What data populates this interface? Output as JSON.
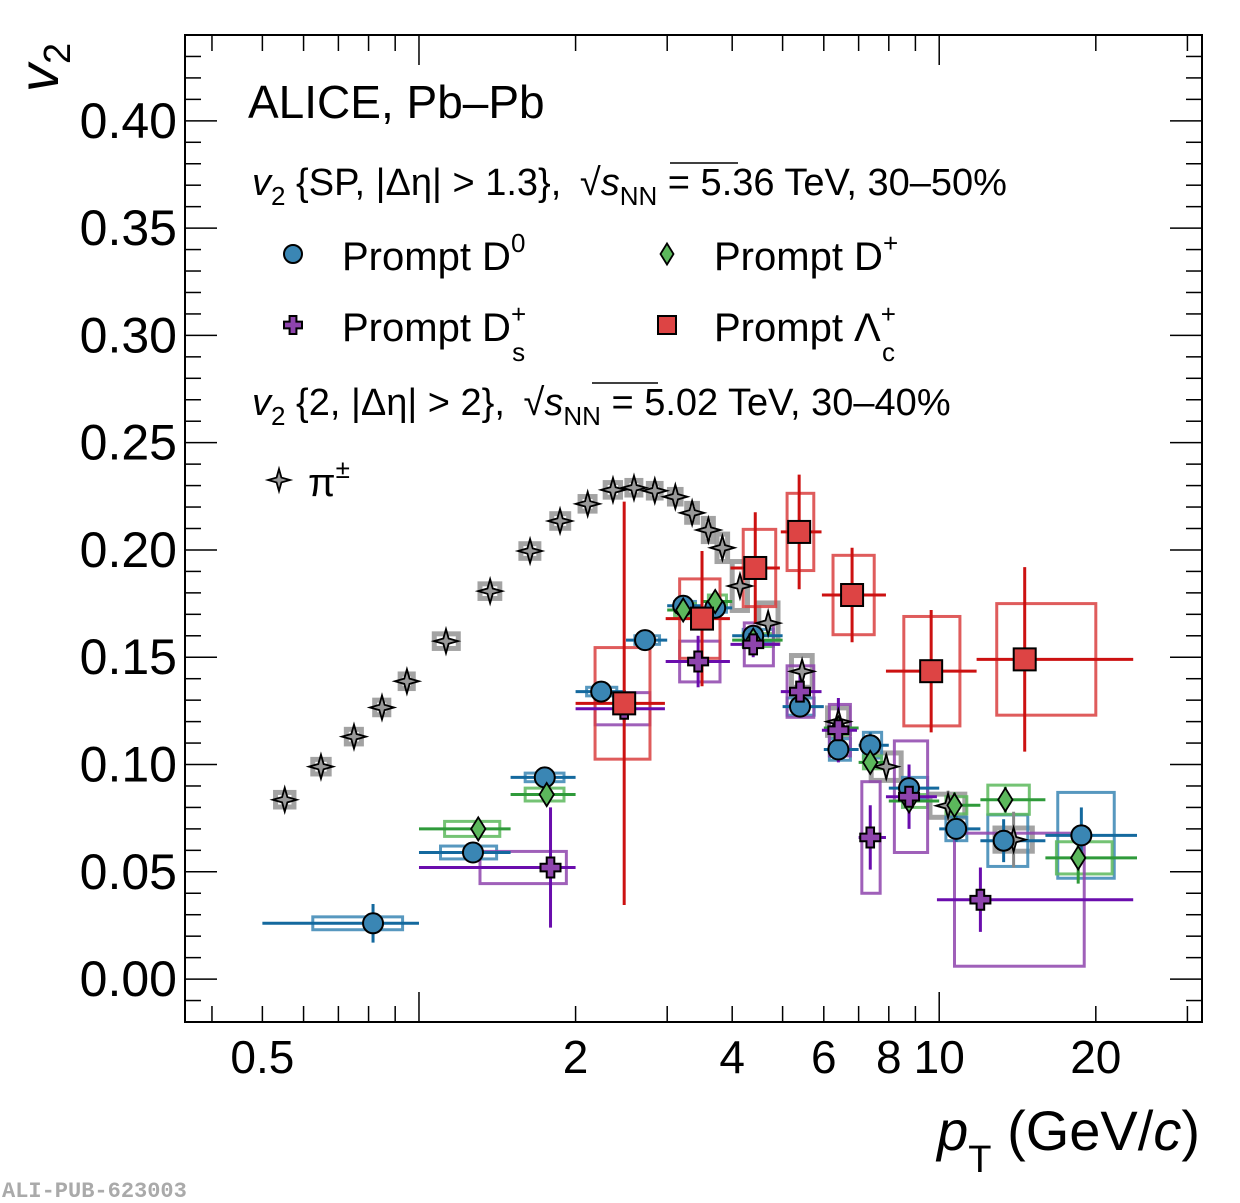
{
  "chart_data": {
    "type": "scatter",
    "title": "ALICE, Pb–Pb",
    "xlabel": "p_T (GeV/c)",
    "ylabel": "v_2",
    "x_scale": "log",
    "xlim": [
      0.355,
      32
    ],
    "ylim": [
      -0.02,
      0.44
    ],
    "x_ticks": [
      0.5,
      2,
      4,
      6,
      8,
      10,
      20
    ],
    "x_tick_labels": [
      "0.5",
      "2",
      "4",
      "6",
      "8",
      "10",
      "20"
    ],
    "y_ticks": [
      0.0,
      0.05,
      0.1,
      0.15,
      0.2,
      0.25,
      0.3,
      0.35,
      0.4
    ],
    "y_tick_labels": [
      "0.00",
      "0.05",
      "0.10",
      "0.15",
      "0.20",
      "0.25",
      "0.30",
      "0.35",
      "0.40"
    ],
    "grid": false,
    "legend_position": "top-left",
    "annotations": {
      "experiment": "ALICE, Pb–Pb",
      "header1": {
        "v": "v",
        "sub": "2",
        "method": "{SP, |Δη| > 1.3},",
        "sqrt": "s",
        "sqrt_sub": "NN",
        "rest": "= 5.36 TeV, 30–50%"
      },
      "header2": {
        "v": "v",
        "sub": "2",
        "method": "{2, |Δη| > 2},",
        "sqrt": "s",
        "sqrt_sub": "NN",
        "rest": "= 5.02 TeV, 30–40%"
      },
      "pub_id": "ALI-PUB-623003"
    },
    "series": [
      {
        "name": "Prompt D0",
        "legend_main": "Prompt D",
        "legend_sup": "0",
        "legend_sub": "",
        "marker": "circle",
        "fill": "#3a86b4",
        "line": "#14699e",
        "box": "#3a86b4",
        "points": [
          {
            "x": 0.816,
            "y": 0.026,
            "xlo": 0.5,
            "xhi": 1.0,
            "ey": 0.009,
            "bx": [
              0.625,
              0.93
            ],
            "bey": 0.003
          },
          {
            "x": 1.27,
            "y": 0.059,
            "xlo": 1.0,
            "xhi": 1.5,
            "ey": 0.003,
            "bx": [
              1.1,
              1.41
            ],
            "bey": 0.003
          },
          {
            "x": 1.745,
            "y": 0.094,
            "xlo": 1.5,
            "xhi": 2.0,
            "ey": 0.003,
            "bx": [
              1.6,
              1.9
            ],
            "bey": 0.002
          },
          {
            "x": 2.24,
            "y": 0.134,
            "xlo": 2.0,
            "xhi": 2.5,
            "ey": 0.003,
            "bx": [
              2.1,
              2.4
            ],
            "bey": 0.002
          },
          {
            "x": 2.72,
            "y": 0.158,
            "xlo": 2.5,
            "xhi": 3.0,
            "ey": 0.003,
            "bx": [
              2.6,
              2.9
            ],
            "bey": 0.002
          },
          {
            "x": 3.22,
            "y": 0.174,
            "xlo": 3.0,
            "xhi": 3.5,
            "ey": 0.003,
            "bx": [
              3.1,
              3.4
            ],
            "bey": 0.002
          },
          {
            "x": 3.71,
            "y": 0.173,
            "xlo": 3.5,
            "xhi": 4.0,
            "ey": 0.003,
            "bx": [
              3.6,
              3.9
            ],
            "bey": 0.002
          },
          {
            "x": 4.39,
            "y": 0.16,
            "xlo": 4.0,
            "xhi": 5.0,
            "ey": 0.004,
            "bx": [
              4.2,
              4.8
            ],
            "bey": 0.003
          },
          {
            "x": 5.4,
            "y": 0.127,
            "xlo": 5.0,
            "xhi": 6.0,
            "ey": 0.005,
            "bx": [
              5.1,
              5.75
            ],
            "bey": 0.004
          },
          {
            "x": 6.4,
            "y": 0.107,
            "xlo": 6.0,
            "xhi": 7.0,
            "ey": 0.005,
            "bx": [
              6.15,
              6.75
            ],
            "bey": 0.005
          },
          {
            "x": 7.37,
            "y": 0.109,
            "xlo": 7.0,
            "xhi": 8.0,
            "ey": 0.006,
            "bx": [
              7.15,
              7.75
            ],
            "bey": 0.006
          },
          {
            "x": 8.75,
            "y": 0.089,
            "xlo": 8.0,
            "xhi": 10.0,
            "ey": 0.008,
            "bx": [
              8.5,
              9.5
            ],
            "bey": 0.005
          },
          {
            "x": 10.78,
            "y": 0.07,
            "xlo": 10.0,
            "xhi": 12.0,
            "ey": 0.006,
            "bx": [
              10.3,
              11.3
            ],
            "bey": 0.0055
          },
          {
            "x": 13.3,
            "y": 0.0645,
            "xlo": 12.0,
            "xhi": 16.0,
            "ey": 0.01,
            "bx": [
              12.4,
              14.8
            ],
            "bey": 0.012
          },
          {
            "x": 18.76,
            "y": 0.067,
            "xlo": 16.0,
            "xhi": 24.0,
            "ey": 0.013,
            "bx": [
              16.9,
              21.7
            ],
            "bey": 0.02
          }
        ]
      },
      {
        "name": "Prompt D+",
        "legend_main": "Prompt D",
        "legend_sup": "+",
        "legend_sub": "",
        "marker": "diamond",
        "fill": "#5cb85c",
        "line": "#2f9a3a",
        "box": "#5cb85c",
        "points": [
          {
            "x": 1.3,
            "y": 0.07,
            "xlo": 1.0,
            "xhi": 1.5,
            "ey": 0.004,
            "bx": [
              1.12,
              1.43
            ],
            "bey": 0.0035
          },
          {
            "x": 1.76,
            "y": 0.086,
            "xlo": 1.5,
            "xhi": 2.0,
            "ey": 0.004,
            "bx": [
              1.6,
              1.9
            ],
            "bey": 0.003
          },
          {
            "x": 3.22,
            "y": 0.172,
            "xlo": 3.0,
            "xhi": 3.5,
            "ey": 0.004,
            "bx": [
              3.1,
              3.4
            ],
            "bey": 0.003
          },
          {
            "x": 3.71,
            "y": 0.176,
            "xlo": 3.5,
            "xhi": 4.0,
            "ey": 0.004,
            "bx": [
              3.6,
              3.9
            ],
            "bey": 0.003
          },
          {
            "x": 4.39,
            "y": 0.158,
            "xlo": 4.0,
            "xhi": 5.0,
            "ey": 0.004,
            "bx": [
              4.2,
              4.8
            ],
            "bey": 0.003
          },
          {
            "x": 6.4,
            "y": 0.117,
            "xlo": 6.0,
            "xhi": 7.0,
            "ey": 0.005,
            "bx": [
              6.15,
              6.75
            ],
            "bey": 0.003
          },
          {
            "x": 7.37,
            "y": 0.101,
            "xlo": 7.0,
            "xhi": 8.0,
            "ey": 0.005,
            "bx": [
              7.15,
              7.75
            ],
            "bey": 0.003
          },
          {
            "x": 8.75,
            "y": 0.083,
            "xlo": 8.0,
            "xhi": 10.0,
            "ey": 0.006,
            "bx": [
              8.5,
              9.5
            ],
            "bey": 0.003
          },
          {
            "x": 10.7,
            "y": 0.081,
            "xlo": 10.0,
            "xhi": 12.0,
            "ey": 0.006,
            "bx": [
              10.3,
              11.3
            ],
            "bey": 0.004
          },
          {
            "x": 13.4,
            "y": 0.0836,
            "xlo": 12.0,
            "xhi": 16.0,
            "ey": 0.006,
            "bx": [
              12.4,
              14.9
            ],
            "bey": 0.0068
          },
          {
            "x": 18.5,
            "y": 0.0565,
            "xlo": 16.0,
            "xhi": 24.0,
            "ey": 0.012,
            "bx": [
              16.8,
              21.5
            ],
            "bey": 0.0075
          }
        ]
      },
      {
        "name": "Prompt Ds+",
        "legend_main": "Prompt D",
        "legend_sup": "+",
        "legend_sub": "s",
        "marker": "cross",
        "fill": "#8e44ad",
        "line": "#6a0dad",
        "box": "#8e44ad",
        "points": [
          {
            "x": 1.79,
            "y": 0.052,
            "xlo": 1.0,
            "xhi": 2.0,
            "ey": 0.028,
            "bx": [
              1.31,
              1.92
            ],
            "bey": 0.0075
          },
          {
            "x": 2.48,
            "y": 0.126,
            "xlo": 2.0,
            "xhi": 2.97,
            "ey": 0.006,
            "bx": [
              2.18,
              2.78
            ],
            "bey": 0.0075
          },
          {
            "x": 3.44,
            "y": 0.148,
            "xlo": 2.98,
            "xhi": 3.96,
            "ey": 0.012,
            "bx": [
              3.17,
              3.79
            ],
            "bey": 0.0095
          },
          {
            "x": 4.39,
            "y": 0.156,
            "xlo": 3.97,
            "xhi": 4.94,
            "ey": 0.006,
            "bx": [
              4.22,
              4.8
            ],
            "bey": 0.01
          },
          {
            "x": 5.4,
            "y": 0.134,
            "xlo": 4.96,
            "xhi": 5.94,
            "ey": 0.01,
            "bx": [
              5.1,
              5.74
            ],
            "bey": 0.012
          },
          {
            "x": 6.4,
            "y": 0.116,
            "xlo": 5.95,
            "xhi": 6.95,
            "ey": 0.015,
            "bx": [
              6.15,
              6.75
            ],
            "bey": 0.012
          },
          {
            "x": 7.37,
            "y": 0.066,
            "xlo": 7.0,
            "xhi": 7.9,
            "ey": 0.015,
            "bx": [
              7.1,
              7.7
            ],
            "bey": 0.026
          },
          {
            "x": 8.75,
            "y": 0.085,
            "xlo": 7.9,
            "xhi": 9.9,
            "ey": 0.015,
            "bx": [
              8.2,
              9.5
            ],
            "bey": 0.026
          },
          {
            "x": 12.0,
            "y": 0.037,
            "xlo": 9.9,
            "xhi": 23.6,
            "ey": 0.015,
            "bx": [
              10.7,
              19.0
            ],
            "bey": 0.031
          }
        ]
      },
      {
        "name": "Prompt Lambda_c+",
        "legend_main": "Prompt Λ",
        "legend_sup": "+",
        "legend_sub": "c",
        "marker": "square",
        "fill": "#dd4444",
        "line": "#cc1111",
        "box": "#d94040",
        "points": [
          {
            "x": 2.48,
            "y": 0.1285,
            "xlo": 2.0,
            "xhi": 2.97,
            "ey": 0.094,
            "bx": [
              2.18,
              2.78
            ],
            "bey": 0.026
          },
          {
            "x": 3.5,
            "y": 0.168,
            "xlo": 2.98,
            "xhi": 3.96,
            "ey": 0.0315,
            "bx": [
              3.17,
              3.79
            ],
            "bey": 0.0185
          },
          {
            "x": 4.43,
            "y": 0.1916,
            "xlo": 3.97,
            "xhi": 4.94,
            "ey": 0.026,
            "bx": [
              4.2,
              4.85
            ],
            "bey": 0.018
          },
          {
            "x": 5.38,
            "y": 0.2084,
            "xlo": 4.96,
            "xhi": 5.94,
            "ey": 0.0267,
            "bx": [
              5.1,
              5.74
            ],
            "bey": 0.018
          },
          {
            "x": 6.8,
            "y": 0.179,
            "xlo": 5.95,
            "xhi": 7.9,
            "ey": 0.022,
            "bx": [
              6.25,
              7.5
            ],
            "bey": 0.0185
          },
          {
            "x": 9.65,
            "y": 0.1435,
            "xlo": 7.9,
            "xhi": 11.8,
            "ey": 0.0285,
            "bx": [
              8.55,
              10.96
            ],
            "bey": 0.0255
          },
          {
            "x": 14.6,
            "y": 0.149,
            "xlo": 11.8,
            "xhi": 23.6,
            "ey": 0.043,
            "bx": [
              12.9,
              20.0
            ],
            "bey": 0.026
          }
        ]
      },
      {
        "name": "pi+-",
        "legend_main": "π",
        "legend_sup": "±",
        "legend_sub": "",
        "marker": "star4",
        "fill": "#999999",
        "line": "#777777",
        "box": "#999999",
        "points": [
          {
            "x": 0.552,
            "y": 0.0836,
            "ey": 0.001,
            "bx": [
              0.53,
              0.575
            ],
            "bey": 0.002
          },
          {
            "x": 0.648,
            "y": 0.099,
            "ey": 0.001,
            "bx": [
              0.625,
              0.672
            ],
            "bey": 0.002
          },
          {
            "x": 0.75,
            "y": 0.113,
            "ey": 0.001,
            "bx": [
              0.725,
              0.775
            ],
            "bey": 0.002
          },
          {
            "x": 0.849,
            "y": 0.1266,
            "ey": 0.001,
            "bx": [
              0.822,
              0.875
            ],
            "bey": 0.002
          },
          {
            "x": 0.948,
            "y": 0.1388,
            "ey": 0.001,
            "bx": [
              0.92,
              0.975
            ],
            "bey": 0.002
          },
          {
            "x": 1.127,
            "y": 0.1575,
            "ey": 0.001,
            "bx": [
              1.07,
              1.19
            ],
            "bey": 0.002
          },
          {
            "x": 1.37,
            "y": 0.1808,
            "ey": 0.001,
            "bx": [
              1.31,
              1.43
            ],
            "bey": 0.002
          },
          {
            "x": 1.635,
            "y": 0.1995,
            "ey": 0.001,
            "bx": [
              1.57,
              1.7
            ],
            "bey": 0.002
          },
          {
            "x": 1.867,
            "y": 0.2135,
            "ey": 0.001,
            "bx": [
              1.8,
              1.94
            ],
            "bey": 0.002
          },
          {
            "x": 2.11,
            "y": 0.2215,
            "ey": 0.001,
            "bx": [
              2.04,
              2.18
            ],
            "bey": 0.002
          },
          {
            "x": 2.36,
            "y": 0.228,
            "ey": 0.001,
            "bx": [
              2.28,
              2.44
            ],
            "bey": 0.002
          },
          {
            "x": 2.59,
            "y": 0.229,
            "ey": 0.001,
            "bx": [
              2.51,
              2.67
            ],
            "bey": 0.002
          },
          {
            "x": 2.84,
            "y": 0.2276,
            "ey": 0.001,
            "bx": [
              2.76,
              2.92
            ],
            "bey": 0.002
          },
          {
            "x": 3.11,
            "y": 0.2248,
            "ey": 0.001,
            "bx": [
              3.03,
              3.19
            ],
            "bey": 0.002
          },
          {
            "x": 3.35,
            "y": 0.2173,
            "ey": 0.001,
            "bx": [
              3.27,
              3.43
            ],
            "bey": 0.003
          },
          {
            "x": 3.6,
            "y": 0.2093,
            "ey": 0.002,
            "bx": [
              3.52,
              3.68
            ],
            "bey": 0.004
          },
          {
            "x": 3.83,
            "y": 0.201,
            "ey": 0.002,
            "bx": [
              3.74,
              3.92
            ],
            "bey": 0.005
          },
          {
            "x": 4.14,
            "y": 0.1832,
            "ey": 0.004,
            "bx": [
              4.0,
              4.28
            ],
            "bey": 0.01
          },
          {
            "x": 4.69,
            "y": 0.1659,
            "ey": 0.004,
            "bx": [
              4.5,
              4.9
            ],
            "bey": 0.008
          },
          {
            "x": 5.45,
            "y": 0.1434,
            "ey": 0.004,
            "bx": [
              5.2,
              5.7
            ],
            "bey": 0.006
          },
          {
            "x": 6.4,
            "y": 0.12,
            "ey": 0.005,
            "bx": [
              6.1,
              6.7
            ],
            "bey": 0.005
          },
          {
            "x": 7.91,
            "y": 0.099,
            "ey": 0.006,
            "bx": [
              7.4,
              8.45
            ],
            "bey": 0.005
          },
          {
            "x": 10.4,
            "y": 0.0808,
            "ey": 0.007,
            "bx": [
              9.6,
              11.2
            ],
            "bey": 0.004
          },
          {
            "x": 13.9,
            "y": 0.065,
            "ey": 0.013,
            "bx": [
              12.8,
              15.1
            ],
            "bey": 0.004
          }
        ]
      }
    ]
  }
}
